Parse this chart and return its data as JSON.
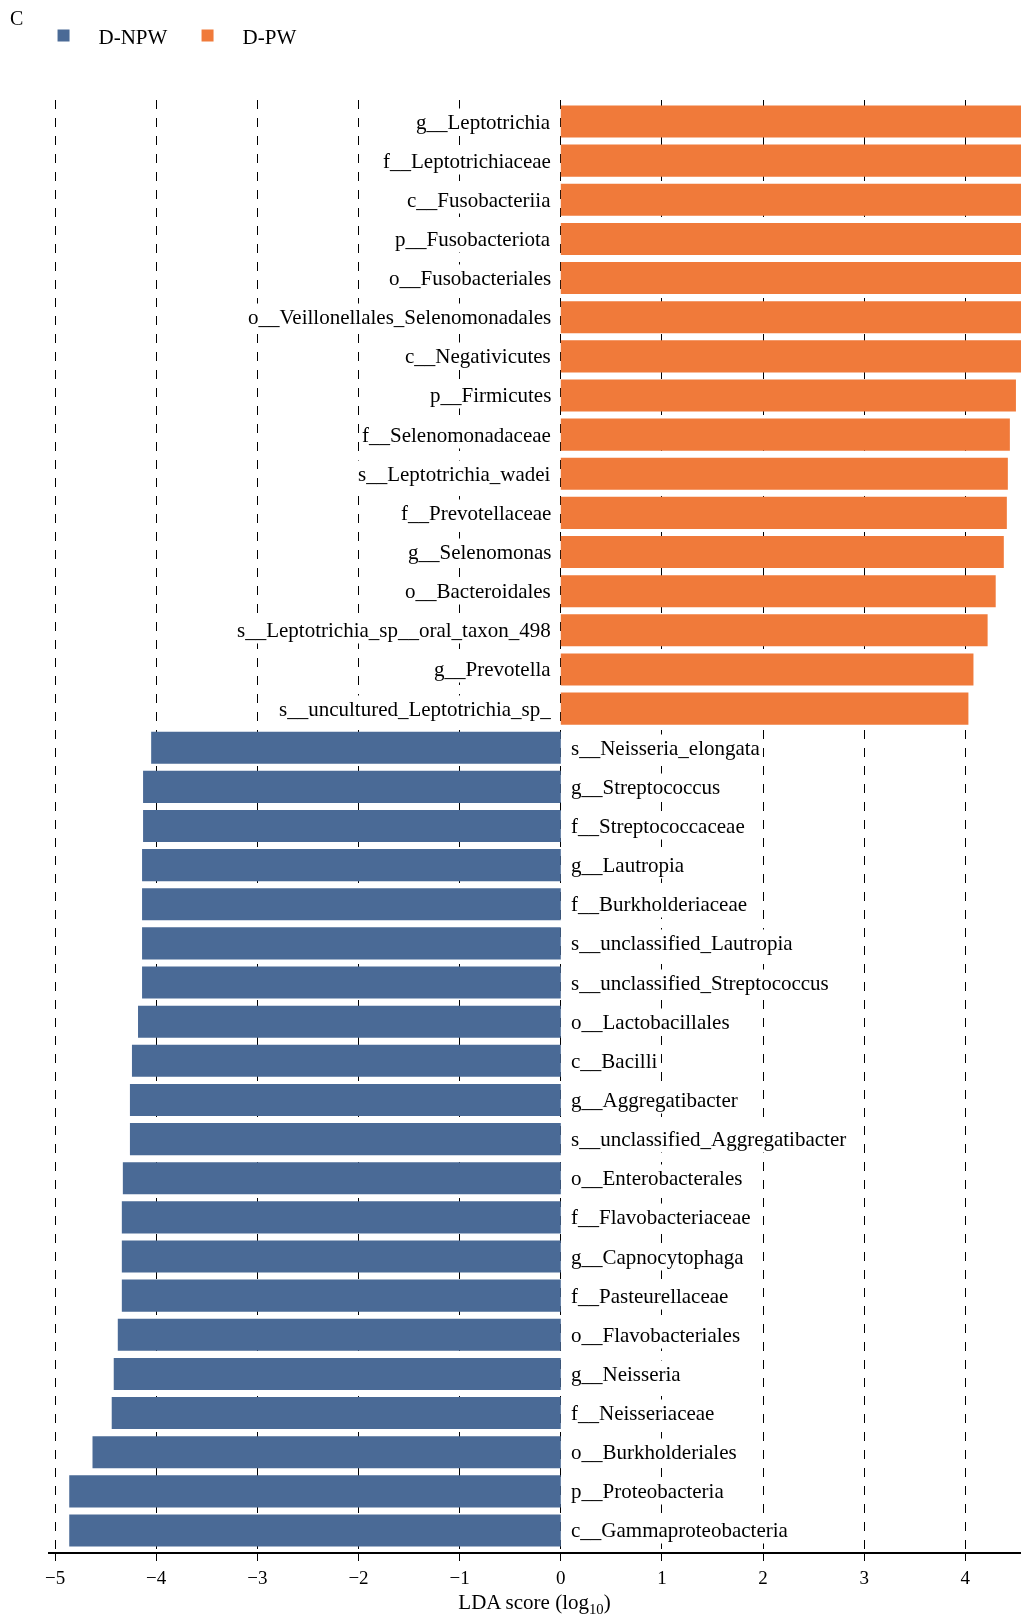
{
  "chart_data": {
    "type": "bar",
    "orientation": "horizontal",
    "xlabel": "LDA score (log$_{10}$)",
    "annotations": [
      "C"
    ],
    "categories": [
      "g__Leptotrichia",
      "f__Leptotrichiaceae",
      "c__Fusobacteriia",
      "p__Fusobacteriota",
      "o__Fusobacteriales",
      "o__Veillonellales_Selenomonadales",
      "c__Negativicutes",
      "p__Firmicutes",
      "f__Selenomonadaceae",
      "s__Leptotrichia_wadei",
      "f__Prevotellaceae",
      "g__Selenomonas",
      "o__Bacteroidales",
      "s__Leptotrichia_sp__oral_taxon_498",
      "g__Prevotella",
      "s__uncultured_Leptotrichia_sp_",
      "s__Neisseria_elongata",
      "g__Streptococcus",
      "f__Streptococcaceae",
      "g__Lautropia",
      "f__Burkholderiaceae",
      "s__unclassified_Lautropia",
      "s__unclassified_Streptococcus",
      "o__Lactobacillales",
      "c__Bacilli",
      "g__Aggregatibacter",
      "s__unclassified_Aggregatibacter",
      "o__Enterobacterales",
      "f__Flavobacteriaceae",
      "g__Capnocytophaga",
      "f__Pasteurellaceae",
      "o__Flavobacteriales",
      "g__Neisseria",
      "f__Neisseriaceae",
      "o__Burkholderiales",
      "p__Proteobacteria",
      "c__Gammaproteobacteria"
    ],
    "series": [
      {
        "name": "D-NPW",
        "color": "#4a6a96",
        "values": [
          null,
          null,
          null,
          null,
          null,
          null,
          null,
          null,
          null,
          null,
          null,
          null,
          null,
          null,
          null,
          null,
          -4.05,
          -4.13,
          -4.13,
          -4.14,
          -4.14,
          -4.14,
          -4.14,
          -4.18,
          -4.24,
          -4.26,
          -4.26,
          -4.33,
          -4.34,
          -4.34,
          -4.34,
          -4.38,
          -4.42,
          -4.44,
          -4.63,
          -4.86,
          -4.86
        ]
      },
      {
        "name": "D-PW",
        "color": "#f07a3a",
        "values": [
          4.55,
          4.55,
          4.55,
          4.55,
          4.55,
          4.55,
          4.55,
          4.5,
          4.44,
          4.42,
          4.41,
          4.38,
          4.3,
          4.22,
          4.08,
          4.03,
          null,
          null,
          null,
          null,
          null,
          null,
          null,
          null,
          null,
          null,
          null,
          null,
          null,
          null,
          null,
          null,
          null,
          null,
          null,
          null,
          null
        ]
      }
    ],
    "xlim": [
      -5.07,
      4.55
    ],
    "xticks": [
      {
        "value": -5,
        "label": "−5"
      },
      {
        "value": -4,
        "label": "−4"
      },
      {
        "value": -3,
        "label": "−3"
      },
      {
        "value": -2,
        "label": "−2"
      },
      {
        "value": -1,
        "label": "−1"
      },
      0,
      1,
      2,
      3,
      4
    ],
    "grid": "x",
    "legend": "top left"
  }
}
